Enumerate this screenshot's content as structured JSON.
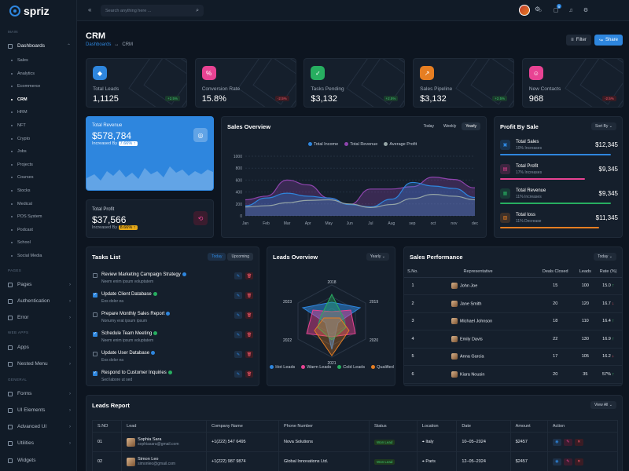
{
  "brand": {
    "name": "spriz"
  },
  "sidebar": {
    "sections": {
      "main": "MAIN",
      "pages": "PAGES",
      "webapps": "WEB APPS",
      "general": "GENERAL"
    },
    "dashboards": "Dashboards",
    "subitems": [
      "Sales",
      "Analytics",
      "Ecommerce",
      "CRM",
      "HRM",
      "NFT",
      "Crypto",
      "Jobs",
      "Projects",
      "Courses",
      "Stocks",
      "Medical",
      "POS System",
      "Podcast",
      "School",
      "Social Media"
    ],
    "pages": "Pages",
    "authentication": "Authentication",
    "error": "Error",
    "apps": "Apps",
    "nested": "Nested Menu",
    "forms": "Forms",
    "ui": "UI Elements",
    "advanced": "Advanced UI",
    "utilities": "Utilities",
    "widgets": "Widgets"
  },
  "topbar": {
    "search_placeholder": "Search anything here ...",
    "cart_count": "5"
  },
  "header": {
    "title": "CRM",
    "crumb_root": "Dashboards",
    "crumb_current": "CRM",
    "filter": "Filter",
    "share": "Share"
  },
  "stats": [
    {
      "label": "Total Leads",
      "value": "1,1125",
      "change": "+2.5%",
      "dir": "up",
      "color": "#2e86de"
    },
    {
      "label": "Conversion Rate",
      "value": "15.8%",
      "change": "-2.5%",
      "dir": "down",
      "color": "#e84393"
    },
    {
      "label": "Tasks Pending",
      "value": "$3,132",
      "change": "+2.5%",
      "dir": "up",
      "color": "#27ae60"
    },
    {
      "label": "Sales Pipeline",
      "value": "$3,132",
      "change": "+2.5%",
      "dir": "up",
      "color": "#e67e22"
    },
    {
      "label": "New Contacts",
      "value": "968",
      "change": "-2.5%",
      "dir": "down",
      "color": "#e84393"
    }
  ],
  "revenue": {
    "label": "Total Revenue",
    "value": "$578,784",
    "inc_text": "Increased By",
    "inc": "7.66% ↑"
  },
  "profit": {
    "label": "Total Profit",
    "value": "$37,566",
    "inc_text": "Increased By",
    "inc": "8.66% ↑"
  },
  "sales_overview": {
    "title": "Sales Overview",
    "tabs": [
      "Today",
      "Weekly",
      "Yearly"
    ],
    "active": "Yearly"
  },
  "chart_data": {
    "type": "area",
    "title": "Sales Overview",
    "categories": [
      "Jan",
      "Feb",
      "Mar",
      "Apr",
      "May",
      "Jun",
      "Jul",
      "Aug",
      "sep",
      "oct",
      "nov",
      "dec"
    ],
    "ylim": [
      0,
      1000
    ],
    "yticks": [
      "1000",
      "800",
      "600",
      "400",
      "200",
      "0"
    ],
    "series": [
      {
        "name": "Total Income",
        "color": "#2e86de",
        "values": [
          170,
          300,
          380,
          330,
          300,
          190,
          150,
          280,
          560,
          500,
          460,
          310
        ]
      },
      {
        "name": "Total Revenue",
        "color": "#8e44ad",
        "values": [
          270,
          330,
          600,
          520,
          300,
          190,
          450,
          450,
          490,
          650,
          610,
          470
        ]
      },
      {
        "name": "Average Profit",
        "color": "#95a5a6",
        "values": [
          150,
          170,
          220,
          260,
          270,
          200,
          140,
          190,
          290,
          360,
          330,
          270
        ]
      }
    ]
  },
  "profit_by_sale": {
    "title": "Profit By Sale",
    "sort": "Sort By",
    "items": [
      {
        "name": "Total Sales",
        "sub": "10% Increases",
        "value": "$12,345",
        "color": "#2e86de",
        "fill": 0.94
      },
      {
        "name": "Total Profit",
        "sub": "17% Increases",
        "value": "$9,345",
        "color": "#e84393",
        "fill": 0.72
      },
      {
        "name": "Total Revenue",
        "sub": "11% Increases",
        "value": "$9,345",
        "color": "#27ae60",
        "fill": 0.94
      },
      {
        "name": "Total loss",
        "sub": "11% Decrease",
        "value": "$11,345",
        "color": "#e67e22",
        "fill": 0.84
      }
    ]
  },
  "tasks": {
    "title": "Tasks List",
    "tabs": [
      "Today",
      "Upcoming"
    ],
    "items": [
      {
        "title": "Review Marketing Campaign Strategy",
        "sub": "Neem enim ipsum voluptatem",
        "done": false,
        "tag": "#2e86de"
      },
      {
        "title": "Update Client Database",
        "sub": "Eos dolor ea",
        "done": true,
        "tag": "#27ae60"
      },
      {
        "title": "Prepare Monthly Sales Report",
        "sub": "Nonumy erat ipsum ipsum",
        "done": false,
        "tag": "#2e86de"
      },
      {
        "title": "Schedule Team Meeting",
        "sub": "Neem enim ipsum voluptatem",
        "done": true,
        "tag": "#27ae60"
      },
      {
        "title": "Update User Database",
        "sub": "Eos dolor ea",
        "done": false,
        "tag": "#2e86de"
      },
      {
        "title": "Respond to Customer Inquiries",
        "sub": "Sed labore ut sed",
        "done": true,
        "tag": "#27ae60"
      }
    ]
  },
  "leads_overview": {
    "title": "Leads Overview",
    "select": "Yearly",
    "axes": [
      "2018",
      "2019",
      "2020",
      "2021",
      "2022",
      "2023"
    ],
    "legend": [
      {
        "name": "Hot Leads",
        "color": "#2e86de"
      },
      {
        "name": "Warm Leads",
        "color": "#e84393"
      },
      {
        "name": "Cold Leads",
        "color": "#27ae60"
      },
      {
        "name": "Qualified",
        "color": "#e67e22"
      }
    ]
  },
  "sales_perf": {
    "title": "Sales Performance",
    "select": "Today",
    "headers": [
      "S.No.",
      "Representative",
      "Deals Closed",
      "Leads",
      "Rate (%)"
    ],
    "rows": [
      {
        "n": "1",
        "name": "John Joe",
        "deals": "15",
        "leads": "100",
        "rate": "15.0",
        "dir": "up"
      },
      {
        "n": "2",
        "name": "Jane Smith",
        "deals": "20",
        "leads": "120",
        "rate": "16.7",
        "dir": "down"
      },
      {
        "n": "3",
        "name": "Michael Johnson",
        "deals": "18",
        "leads": "110",
        "rate": "16.4",
        "dir": "up"
      },
      {
        "n": "4",
        "name": "Emily Davis",
        "deals": "22",
        "leads": "130",
        "rate": "16.9",
        "dir": "up"
      },
      {
        "n": "5",
        "name": "Anna Garcia",
        "deals": "17",
        "leads": "105",
        "rate": "16.2",
        "dir": "down"
      },
      {
        "n": "6",
        "name": "Kiara Nousin",
        "deals": "20",
        "leads": "35",
        "rate": "57%",
        "dir": "up"
      }
    ]
  },
  "leads_report": {
    "title": "Leads Report",
    "select": "View All",
    "headers": [
      "S.NO",
      "Lead",
      "Company Name",
      "Phone Number",
      "Status",
      "Location",
      "Date",
      "Amount",
      "Action"
    ],
    "rows": [
      {
        "no": "01",
        "name": "Sophia Sara",
        "email": "sophiasara@gmail.com",
        "phone": "+1(222) 547 6495",
        "company": "Nova Solutions",
        "status": "Won Lead",
        "location": "Italy",
        "date": "10–05–2024",
        "amount": "$2457"
      },
      {
        "no": "02",
        "name": "Simon Leo",
        "email": "simonleo@gmail.com",
        "phone": "+1(222) 987 9874",
        "company": "Global Innovations Ltd.",
        "status": "Won Lead",
        "location": "Paris",
        "date": "12–05–2024",
        "amount": "$2457"
      }
    ]
  }
}
